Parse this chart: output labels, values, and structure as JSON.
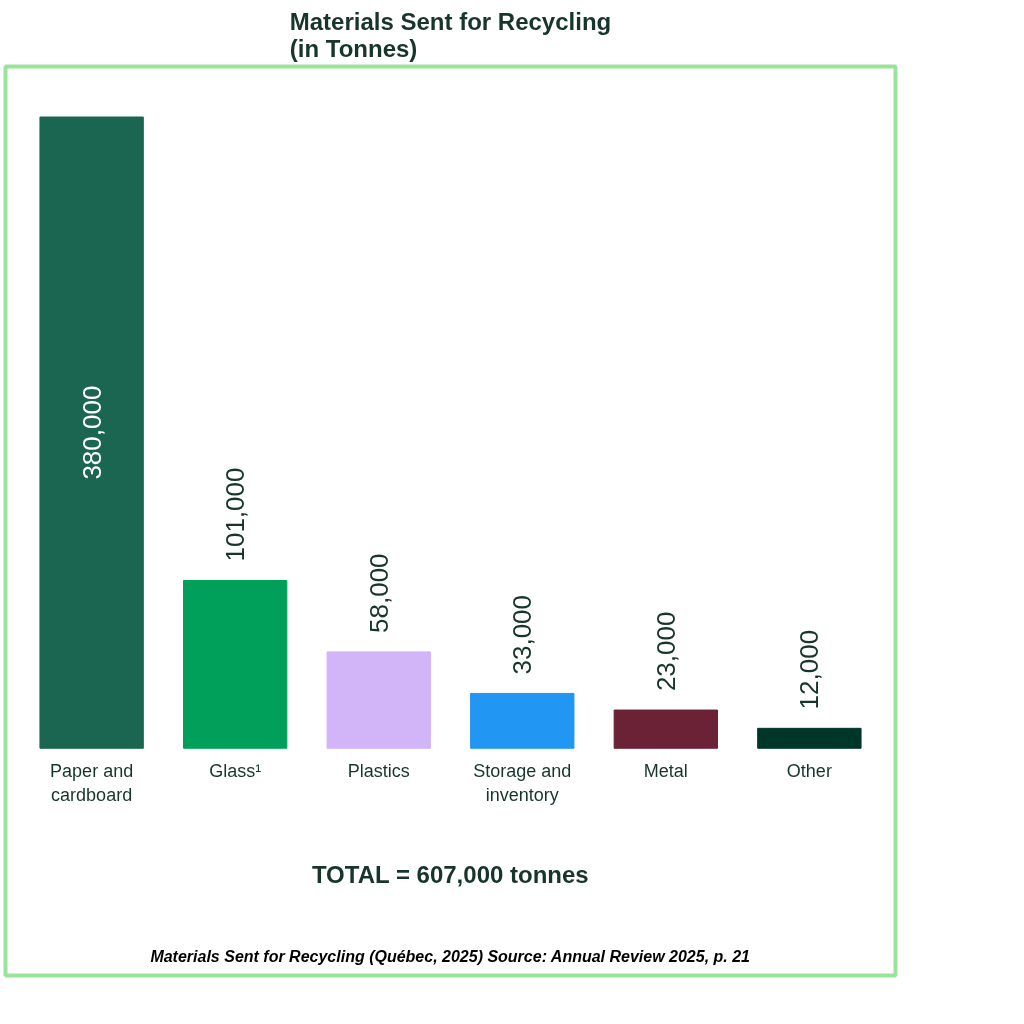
{
  "chart_data": {
    "type": "bar",
    "title": "Materials Sent for Recycling\n(in Tonnes)",
    "categories": [
      "Paper and\ncardboard",
      "Glass¹",
      "Plastics",
      "Storage and\ninventory",
      "Metal",
      "Other"
    ],
    "values": [
      380000,
      101000,
      58000,
      33000,
      23000,
      12000
    ],
    "colors": [
      "#1a6650",
      "#00a05a",
      "#d2b4f8",
      "#2196f3",
      "#6b2237",
      "#003628"
    ],
    "value_labels": [
      "380,000",
      "101,000",
      "58,000",
      "33,000",
      "23,000",
      "12,000"
    ],
    "annotations": [
      "TOTAL = 607,000 tonnes",
      "Materials Sent for Recycling (Québec, 2025) Source: Annual Review 2025, p. 21"
    ],
    "grid": false
  }
}
